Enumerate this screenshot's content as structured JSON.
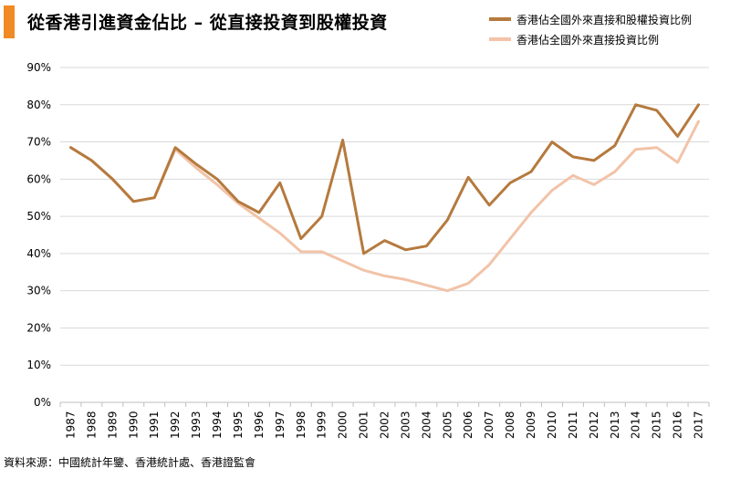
{
  "header": {
    "title": "從香港引進資金佔比 – 從直接投資到股權投資",
    "accent_color": "#f08a24"
  },
  "source": "資料來源：中國統計年鑒、香港統計處、香港證監會",
  "chart_data": {
    "type": "line",
    "title": "從香港引進資金佔比 – 從直接投資到股權投資",
    "xlabel": "",
    "ylabel": "",
    "x": [
      "1987",
      "1988",
      "1989",
      "1990",
      "1991",
      "1992",
      "1993",
      "1994",
      "1995",
      "1996",
      "1997",
      "1998",
      "1999",
      "2000",
      "2001",
      "2002",
      "2003",
      "2004",
      "2005",
      "2006",
      "2007",
      "2008",
      "2009",
      "2010",
      "2011",
      "2012",
      "2013",
      "2014",
      "2015",
      "2016",
      "2017"
    ],
    "ylim": [
      0,
      90
    ],
    "yticks": [
      "0%",
      "10%",
      "20%",
      "30%",
      "40%",
      "50%",
      "60%",
      "70%",
      "80%",
      "90%"
    ],
    "grid": true,
    "legend": "top-right",
    "series": [
      {
        "name": "香港佔全國外來直接和股權投資比例",
        "color": "#b57a3e",
        "values": [
          68.5,
          65,
          60,
          54,
          55,
          68.5,
          64,
          60,
          54,
          51,
          59,
          44,
          50,
          70.5,
          40,
          43.5,
          41,
          42,
          49,
          60.5,
          53,
          59,
          62,
          70,
          66,
          65,
          69,
          80,
          78.5,
          71.5,
          80
        ]
      },
      {
        "name": "香港佔全國外來直接投資比例",
        "color": "#f2c3a8",
        "values": [
          68.5,
          65,
          60,
          54,
          55,
          68,
          63,
          58.5,
          53.5,
          49.5,
          45.5,
          40.5,
          40.5,
          38,
          35.5,
          34,
          33,
          31.5,
          30,
          32,
          37,
          44,
          51,
          57,
          61,
          58.5,
          62,
          68,
          68.5,
          64.5,
          75.5
        ]
      }
    ]
  }
}
